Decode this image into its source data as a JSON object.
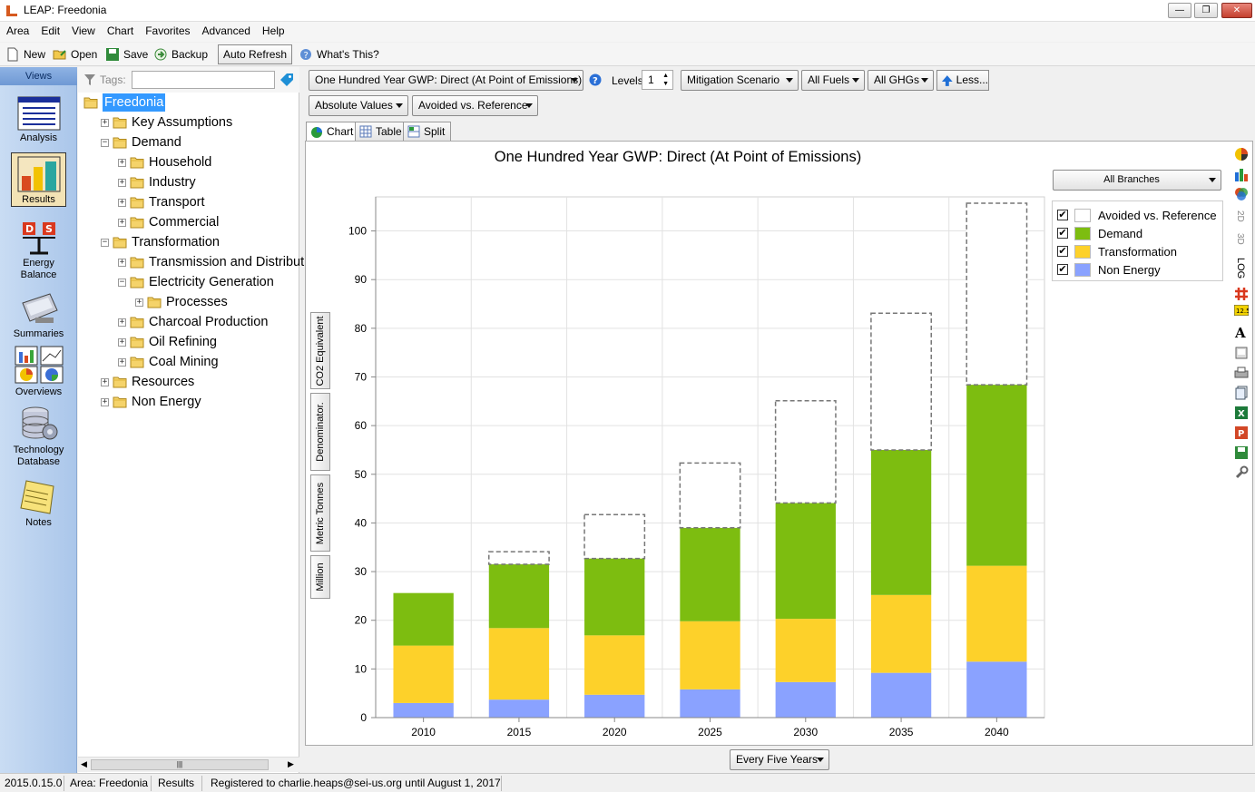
{
  "window": {
    "title": "LEAP: Freedonia"
  },
  "menu": [
    "Area",
    "Edit",
    "View",
    "Chart",
    "Favorites",
    "Advanced",
    "Help"
  ],
  "toolbar": {
    "new": "New",
    "open": "Open",
    "save": "Save",
    "backup": "Backup",
    "auto_refresh": "Auto Refresh",
    "whats_this": "What's This?"
  },
  "views": {
    "header": "Views",
    "items": [
      {
        "label": "Analysis",
        "icon": "analysis-icon"
      },
      {
        "label": "Results",
        "icon": "results-icon"
      },
      {
        "label1": "Energy",
        "label2": "Balance",
        "icon": "energy-balance-icon"
      },
      {
        "label": "Summaries",
        "icon": "summaries-icon"
      },
      {
        "label": "Overviews",
        "icon": "overviews-icon"
      },
      {
        "label1": "Technology",
        "label2": "Database",
        "icon": "technology-database-icon"
      },
      {
        "label": "Notes",
        "icon": "notes-icon"
      }
    ]
  },
  "tags": {
    "label": "Tags:",
    "value": ""
  },
  "tree": [
    {
      "label": "Freedonia",
      "depth": 0,
      "expander": "",
      "selected": true
    },
    {
      "label": "Key Assumptions",
      "depth": 1,
      "expander": "+"
    },
    {
      "label": "Demand",
      "depth": 1,
      "expander": "−"
    },
    {
      "label": "Household",
      "depth": 2,
      "expander": "+"
    },
    {
      "label": "Industry",
      "depth": 2,
      "expander": "+"
    },
    {
      "label": "Transport",
      "depth": 2,
      "expander": "+"
    },
    {
      "label": "Commercial",
      "depth": 2,
      "expander": "+"
    },
    {
      "label": "Transformation",
      "depth": 1,
      "expander": "−"
    },
    {
      "label": "Transmission and Distributi",
      "depth": 2,
      "expander": "+"
    },
    {
      "label": "Electricity Generation",
      "depth": 2,
      "expander": "−"
    },
    {
      "label": "Processes",
      "depth": 3,
      "expander": "+"
    },
    {
      "label": "Charcoal Production",
      "depth": 2,
      "expander": "+"
    },
    {
      "label": "Oil Refining",
      "depth": 2,
      "expander": "+"
    },
    {
      "label": "Coal Mining",
      "depth": 2,
      "expander": "+"
    },
    {
      "label": "Resources",
      "depth": 1,
      "expander": "+"
    },
    {
      "label": "Non Energy",
      "depth": 1,
      "expander": "+"
    }
  ],
  "controls": {
    "variable": "One Hundred Year GWP: Direct (At Point of Emissions)",
    "levels_label": "Levels:",
    "levels_value": "1",
    "scenario": "Mitigation Scenario",
    "fuels": "All Fuels",
    "ghgs": "All GHGs",
    "less": "Less...",
    "values_mode": "Absolute Values",
    "comparison": "Avoided vs. Reference",
    "branches": "All Branches",
    "years": "Every Five Years"
  },
  "tabs": [
    "Chart",
    "Table",
    "Split"
  ],
  "unit_buttons": [
    "CO2 Equivalent",
    "Denominator.",
    "Metric Tonnes",
    "Million"
  ],
  "side_text": {
    "d2": "2D",
    "d3": "3D",
    "log": "LOG"
  },
  "chart_data": {
    "type": "bar",
    "stacked": true,
    "title": "One Hundred Year GWP: Direct (At Point of Emissions)",
    "categories": [
      "2010",
      "2015",
      "2020",
      "2025",
      "2030",
      "2035",
      "2040"
    ],
    "ylim": [
      0,
      107
    ],
    "yticks": [
      0,
      10,
      20,
      30,
      40,
      50,
      60,
      70,
      80,
      90,
      100
    ],
    "grid": true,
    "legend_position": "right",
    "series": [
      {
        "name": "Non Energy",
        "color": "#8aa2ff",
        "values": [
          3.0,
          3.7,
          4.7,
          5.8,
          7.3,
          9.2,
          11.5
        ]
      },
      {
        "name": "Transformation",
        "color": "#fdd12a",
        "values": [
          11.8,
          14.7,
          12.2,
          14.0,
          13.0,
          16.0,
          19.7
        ]
      },
      {
        "name": "Demand",
        "color": "#7dbd10",
        "values": [
          10.8,
          13.1,
          15.8,
          19.2,
          23.8,
          29.8,
          37.2
        ]
      },
      {
        "name": "Avoided vs. Reference",
        "color": "#ffffff",
        "values": [
          0.0,
          2.6,
          9.0,
          13.3,
          21.0,
          28.1,
          37.3
        ],
        "dashed": true
      }
    ],
    "legend_order": [
      "Avoided vs. Reference",
      "Demand",
      "Transformation",
      "Non Energy"
    ]
  },
  "status": {
    "version": "2015.0.15.0",
    "area": "Area: Freedonia",
    "view": "Results",
    "registration": "Registered to charlie.heaps@sei-us.org until August 1, 2017"
  }
}
